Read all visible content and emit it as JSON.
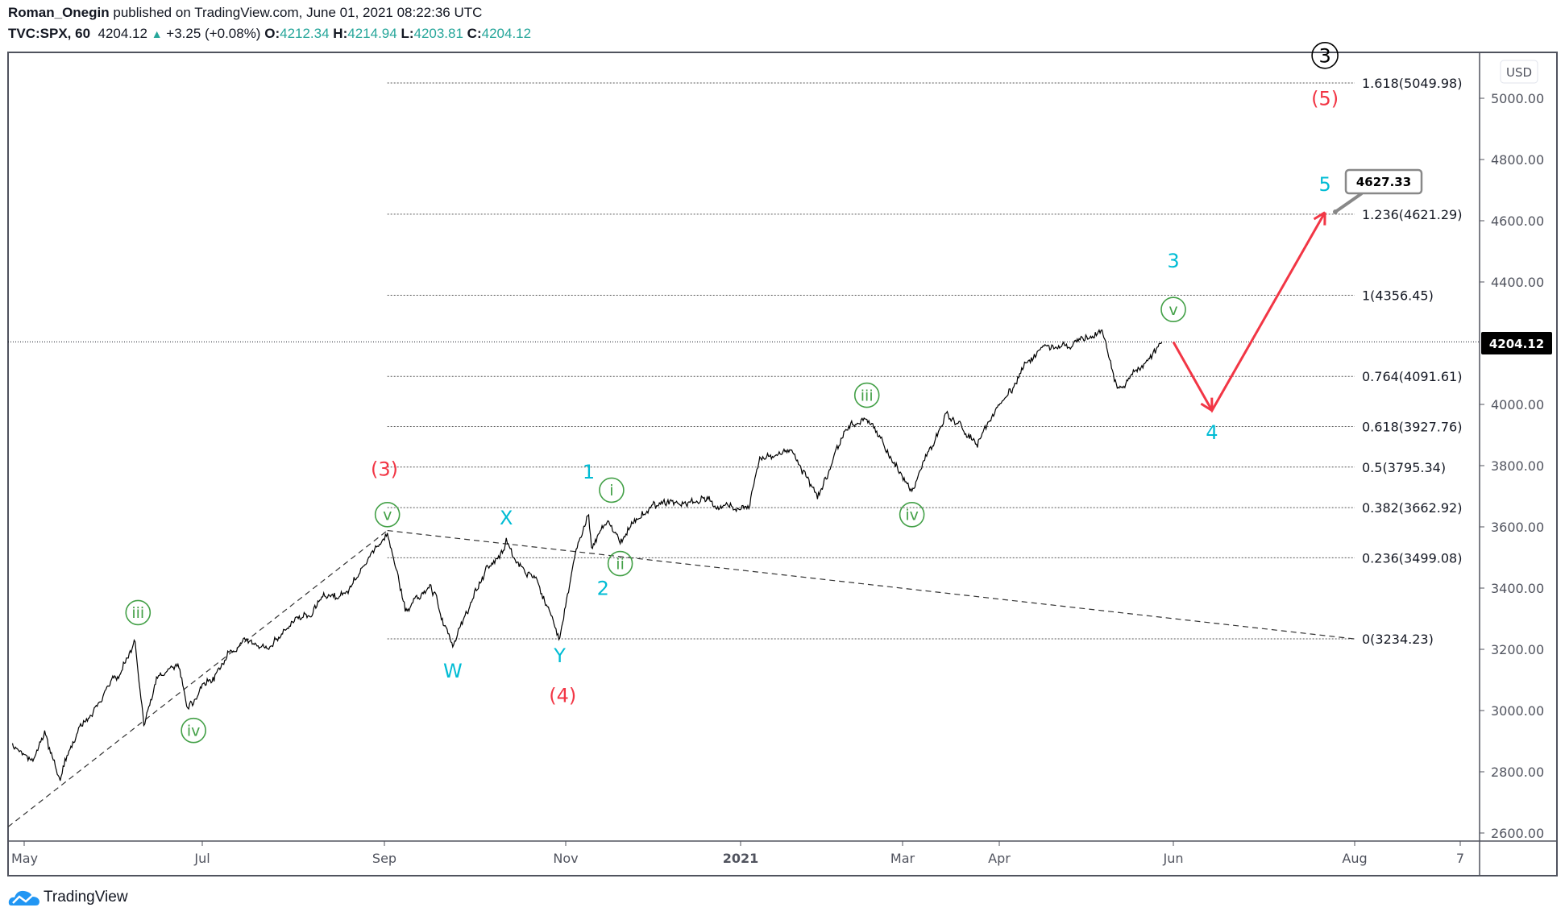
{
  "header": {
    "author": "Roman_Onegin",
    "published": "published on TradingView.com, June 01, 2021 08:22:36 UTC",
    "symbol": "TVC:SPX, 60",
    "last": "4204.12",
    "change": "+3.25 (+0.08%)",
    "o_label": "O:",
    "o": "4212.34",
    "h_label": "H:",
    "h": "4214.94",
    "l_label": "L:",
    "l": "4203.81",
    "c_label": "C:",
    "c": "4204.12"
  },
  "currency": "USD",
  "current_price_label": "4204.12",
  "callout_label": "4627.33",
  "footer": {
    "brand": "TradingView"
  },
  "colors": {
    "up": "#26a69a",
    "wave_cyan": "#00bcd4",
    "wave_green": "#43a047",
    "wave_red": "#f23645",
    "projection": "#f23645"
  },
  "chart_data": {
    "type": "line",
    "title": "",
    "price_ticks": [
      "5000.00",
      "4800.00",
      "4600.00",
      "4400.00",
      "4000.00",
      "3800.00",
      "3600.00",
      "3400.00",
      "3200.00",
      "3000.00",
      "2800.00",
      "2600.00"
    ],
    "price_tick_values": [
      5000,
      4800,
      4600,
      4400,
      4000,
      3800,
      3600,
      3400,
      3200,
      3000,
      2800,
      2600
    ],
    "ylim": [
      2600,
      5000
    ],
    "time_ticks": [
      {
        "label": "May",
        "date": "2020-05-01"
      },
      {
        "label": "Jul",
        "date": "2020-07-01"
      },
      {
        "label": "Sep",
        "date": "2020-09-01"
      },
      {
        "label": "Nov",
        "date": "2020-11-01"
      },
      {
        "label": "2021",
        "date": "2021-01-01"
      },
      {
        "label": "Mar",
        "date": "2021-03-01"
      },
      {
        "label": "Apr",
        "date": "2021-04-01"
      },
      {
        "label": "Jun",
        "date": "2021-06-01"
      },
      {
        "label": "Aug",
        "date": "2021-08-01"
      },
      {
        "label": "7",
        "date": "2021-09-07"
      }
    ],
    "series": [
      {
        "points": [
          [
            "2020-04-27",
            2880
          ],
          [
            "2020-05-04",
            2830
          ],
          [
            "2020-05-08",
            2930
          ],
          [
            "2020-05-13",
            2780
          ],
          [
            "2020-05-19",
            2920
          ],
          [
            "2020-05-27",
            3030
          ],
          [
            "2020-06-03",
            3120
          ],
          [
            "2020-06-08",
            3233
          ],
          [
            "2020-06-11",
            2960
          ],
          [
            "2020-06-16",
            3120
          ],
          [
            "2020-06-23",
            3150
          ],
          [
            "2020-06-26",
            3010
          ],
          [
            "2020-06-29",
            3030
          ],
          [
            "2020-07-08",
            3160
          ],
          [
            "2020-07-15",
            3230
          ],
          [
            "2020-07-24",
            3210
          ],
          [
            "2020-08-03",
            3300
          ],
          [
            "2020-08-12",
            3380
          ],
          [
            "2020-08-20",
            3390
          ],
          [
            "2020-08-26",
            3480
          ],
          [
            "2020-09-02",
            3588
          ],
          [
            "2020-09-08",
            3330
          ],
          [
            "2020-09-16",
            3400
          ],
          [
            "2020-09-24",
            3210
          ],
          [
            "2020-10-01",
            3380
          ],
          [
            "2020-10-12",
            3550
          ],
          [
            "2020-10-16",
            3480
          ],
          [
            "2020-10-22",
            3440
          ],
          [
            "2020-10-30",
            3233
          ],
          [
            "2020-11-04",
            3500
          ],
          [
            "2020-11-09",
            3645
          ],
          [
            "2020-11-10",
            3530
          ],
          [
            "2020-11-16",
            3620
          ],
          [
            "2020-11-20",
            3550
          ],
          [
            "2020-12-01",
            3660
          ],
          [
            "2020-12-10",
            3680
          ],
          [
            "2020-12-21",
            3700
          ],
          [
            "2021-01-04",
            3660
          ],
          [
            "2021-01-08",
            3820
          ],
          [
            "2021-01-20",
            3850
          ],
          [
            "2021-01-29",
            3700
          ],
          [
            "2021-02-08",
            3910
          ],
          [
            "2021-02-16",
            3950
          ],
          [
            "2021-02-26",
            3800
          ],
          [
            "2021-03-04",
            3720
          ],
          [
            "2021-03-15",
            3970
          ],
          [
            "2021-03-25",
            3860
          ],
          [
            "2021-04-01",
            4000
          ],
          [
            "2021-04-16",
            4190
          ],
          [
            "2021-04-29",
            4210
          ],
          [
            "2021-05-07",
            4240
          ],
          [
            "2021-05-12",
            4060
          ],
          [
            "2021-05-20",
            4120
          ],
          [
            "2021-05-28",
            4204
          ]
        ]
      }
    ],
    "fib_levels": [
      {
        "label": "1.618(5049.98)",
        "value": 5049.98
      },
      {
        "label": "1.236(4621.29)",
        "value": 4621.29
      },
      {
        "label": "1(4356.45)",
        "value": 4356.45
      },
      {
        "label": "0.764(4091.61)",
        "value": 4091.61
      },
      {
        "label": "0.618(3927.76)",
        "value": 3927.76
      },
      {
        "label": "0.5(3795.34)",
        "value": 3795.34
      },
      {
        "label": "0.382(3662.92)",
        "value": 3662.92
      },
      {
        "label": "0.236(3499.08)",
        "value": 3499.08
      },
      {
        "label": "0(3234.23)",
        "value": 3234.23
      }
    ],
    "fib_range": {
      "start": "2020-09-02",
      "end": "2021-08-01"
    },
    "trendlines": [
      [
        [
          "2020-04-24",
          2620
        ],
        [
          "2020-09-02",
          3588
        ]
      ],
      [
        [
          "2020-09-02",
          3588
        ],
        [
          "2021-08-01",
          3234
        ]
      ]
    ],
    "projection": [
      [
        "2021-06-01",
        4204
      ],
      [
        "2021-06-14",
        3980
      ],
      [
        "2021-07-22",
        4627.33
      ]
    ],
    "wave_labels": [
      {
        "text": "3",
        "style": "circle-black",
        "date": "2021-07-22",
        "price": 5140
      },
      {
        "text": "(5)",
        "style": "red",
        "date": "2021-07-22",
        "price": 5000
      },
      {
        "text": "5",
        "style": "cyan",
        "date": "2021-07-22",
        "price": 4720
      },
      {
        "text": "3",
        "style": "cyan",
        "date": "2021-06-01",
        "price": 4470
      },
      {
        "text": "v",
        "style": "circle-green",
        "date": "2021-06-01",
        "price": 4310
      },
      {
        "text": "4",
        "style": "cyan",
        "date": "2021-06-14",
        "price": 3910
      },
      {
        "text": "iii",
        "style": "circle-green",
        "date": "2021-02-16",
        "price": 4030
      },
      {
        "text": "iv",
        "style": "circle-green",
        "date": "2021-03-04",
        "price": 3640
      },
      {
        "text": "1",
        "style": "cyan",
        "date": "2020-11-09",
        "price": 3780
      },
      {
        "text": "i",
        "style": "circle-green",
        "date": "2020-11-17",
        "price": 3720
      },
      {
        "text": "ii",
        "style": "circle-green",
        "date": "2020-11-20",
        "price": 3480
      },
      {
        "text": "2",
        "style": "cyan",
        "date": "2020-11-14",
        "price": 3400
      },
      {
        "text": "X",
        "style": "cyan",
        "date": "2020-10-12",
        "price": 3630
      },
      {
        "text": "W",
        "style": "cyan",
        "date": "2020-09-24",
        "price": 3130
      },
      {
        "text": "Y",
        "style": "cyan",
        "date": "2020-10-30",
        "price": 3180
      },
      {
        "text": "(4)",
        "style": "red",
        "date": "2020-10-31",
        "price": 3050
      },
      {
        "text": "(3)",
        "style": "red",
        "date": "2020-09-01",
        "price": 3790
      },
      {
        "text": "v",
        "style": "circle-green",
        "date": "2020-09-02",
        "price": 3640
      },
      {
        "text": "iii",
        "style": "circle-green",
        "date": "2020-06-09",
        "price": 3320
      },
      {
        "text": "iv",
        "style": "circle-green",
        "date": "2020-06-28",
        "price": 2935
      }
    ]
  }
}
